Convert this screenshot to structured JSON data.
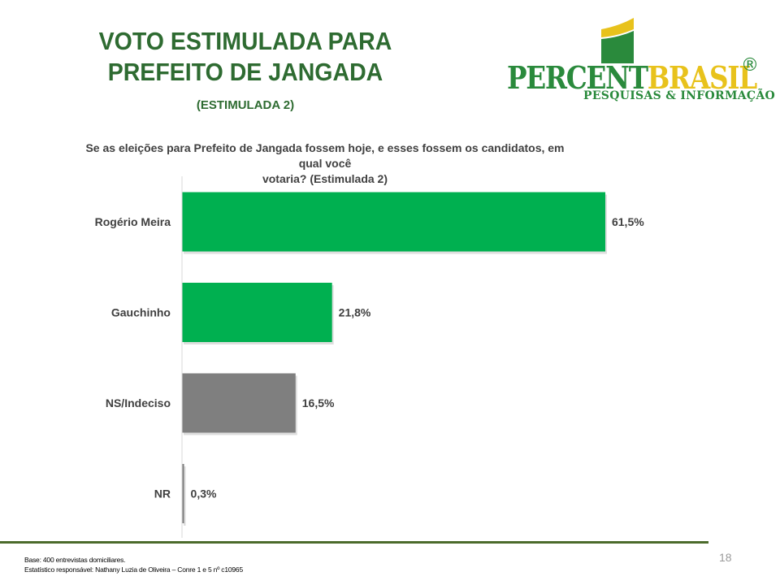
{
  "header": {
    "title_line1": "VOTO ESTIMULADA PARA",
    "title_line2": "PREFEITO DE JANGADA",
    "subtitle": "(ESTIMULADA 2)"
  },
  "logo": {
    "name_part1": "PERCENT",
    "name_part2": "BRASIL",
    "registered": "®",
    "tagline": "PESQUISAS & INFORMAÇÃO",
    "colors": {
      "green": "#2a8a3c",
      "yellow": "#e8c21c"
    }
  },
  "question": {
    "line1": "Se as eleições para Prefeito de Jangada fossem hoje, e esses fossem os candidatos, em qual você",
    "line2": "votaria? (Estimulada 2)"
  },
  "chart_data": {
    "type": "bar",
    "orientation": "horizontal",
    "title": "Se as eleições para Prefeito de Jangada fossem hoje, e esses fossem os candidatos, em qual você votaria? (Estimulada 2)",
    "categories": [
      "Rogério Meira",
      "Gauchinho",
      "NS/Indeciso",
      "NR"
    ],
    "values": [
      61.5,
      21.8,
      16.5,
      0.3
    ],
    "value_labels": [
      "61,5%",
      "21,8%",
      "16,5%",
      "0,3%"
    ],
    "colors": [
      "#00b050",
      "#00b050",
      "#7f7f7f",
      "#7f7f7f"
    ],
    "xlim": [
      0,
      70
    ],
    "xlabel": "",
    "ylabel": "",
    "grid": false,
    "legend": "none"
  },
  "footer": {
    "base": "Base: 400 entrevistas domiciliares.",
    "statistician": "Estatístico responsável: Nathany Luzia de Oliveira – Conre 1 e 5 nº c10965",
    "page_number": "18"
  }
}
